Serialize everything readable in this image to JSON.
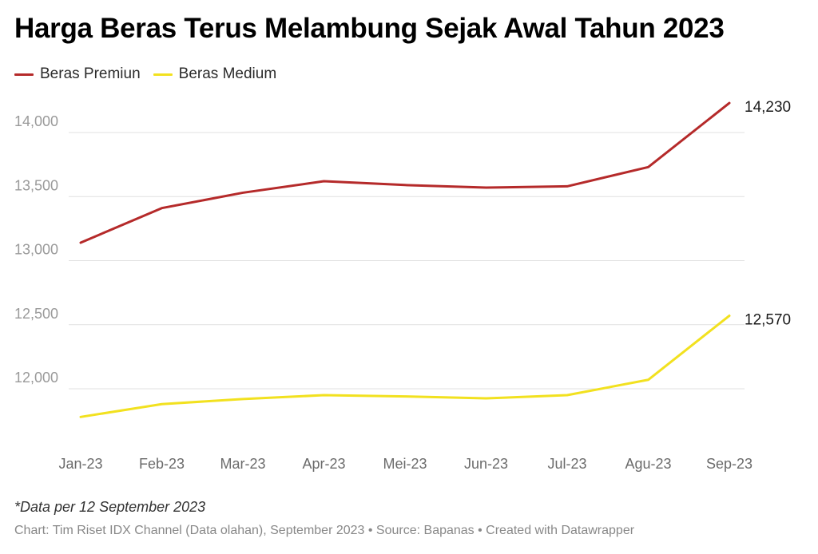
{
  "chart_data": {
    "type": "line",
    "title": "Harga Beras Terus Melambung Sejak Awal Tahun 2023",
    "categories": [
      "Jan-23",
      "Feb-23",
      "Mar-23",
      "Apr-23",
      "Mei-23",
      "Jun-23",
      "Jul-23",
      "Agu-23",
      "Sep-23"
    ],
    "series": [
      {
        "name": "Beras Premiun",
        "color": "#b52a2a",
        "values": [
          13140,
          13410,
          13530,
          13620,
          13590,
          13570,
          13580,
          13730,
          14230
        ],
        "end_label": "14,230"
      },
      {
        "name": "Beras Medium",
        "color": "#f2e11f",
        "values": [
          11780,
          11880,
          11920,
          11950,
          11940,
          11925,
          11950,
          12070,
          12570
        ],
        "end_label": "12,570"
      }
    ],
    "y_ticks": [
      12000,
      12500,
      13000,
      13500,
      14000
    ],
    "y_tick_labels": [
      "12,000",
      "12,500",
      "13,000",
      "13,500",
      "14,000"
    ],
    "ylim": [
      11760,
      14400
    ],
    "grid": true,
    "legend_position": "top-left"
  },
  "note": "*Data per 12 September 2023",
  "credit": "Chart: Tim Riset IDX Channel (Data olahan), September 2023 • Source: Bapanas • Created with Datawrapper"
}
